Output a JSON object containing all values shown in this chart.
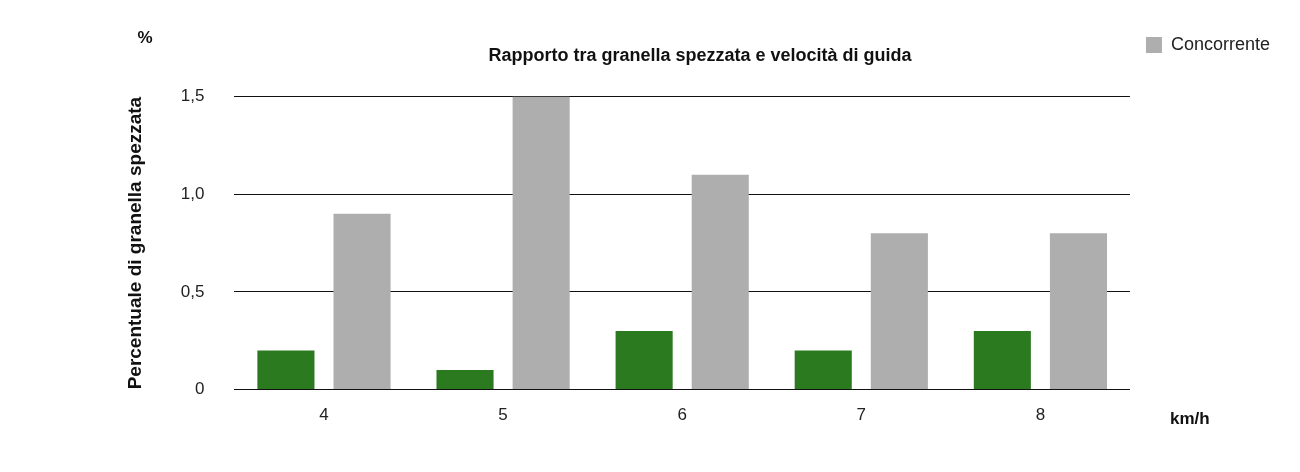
{
  "chart_data": {
    "type": "bar",
    "title": "Rapporto tra granella spezzata e velocità di guida",
    "xlabel": "km/h",
    "ylabel": "Percentuale di granella spezzata",
    "annotations": [
      "%"
    ],
    "categories": [
      "4",
      "5",
      "6",
      "7",
      "8"
    ],
    "series": [
      {
        "color": "#2b7a1f",
        "values": [
          0.2,
          0.1,
          0.3,
          0.2,
          0.3
        ]
      },
      {
        "name": "Concorrente",
        "color": "#aeaeae",
        "values": [
          0.9,
          1.5,
          1.1,
          0.8,
          0.8
        ]
      }
    ],
    "ylim": [
      0,
      1.5
    ],
    "yticks": [
      {
        "value": 0,
        "label": "0"
      },
      {
        "value": 0.5,
        "label": "0,5"
      },
      {
        "value": 1,
        "label": "1,0"
      },
      {
        "value": 1.5,
        "label": "1,5"
      }
    ],
    "grid": "y",
    "legend": "top right"
  }
}
